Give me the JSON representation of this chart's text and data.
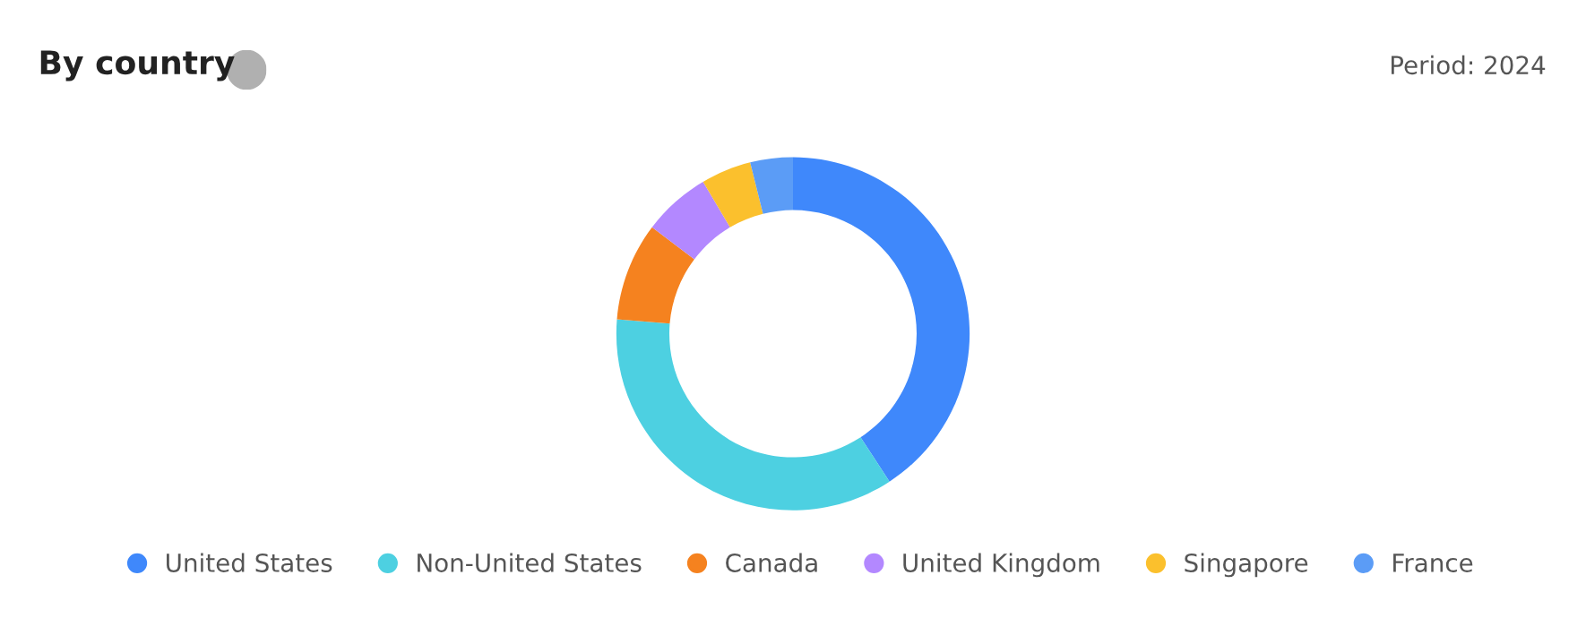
{
  "chart_data": {
    "type": "donut",
    "title": "By country",
    "subtitle": "Period: 2024",
    "categories": [
      "United States",
      "Non-United States",
      "Canada",
      "United Kingdom",
      "Singapore",
      "France"
    ],
    "values": [
      40.8,
      35.5,
      9,
      6.2,
      4.6,
      3.9
    ],
    "colors": [
      "#3f88fb",
      "#4dd0e1",
      "#f5821f",
      "#b388ff",
      "#fbc02d",
      "#5b9cf6"
    ],
    "legend": "bottom"
  }
}
